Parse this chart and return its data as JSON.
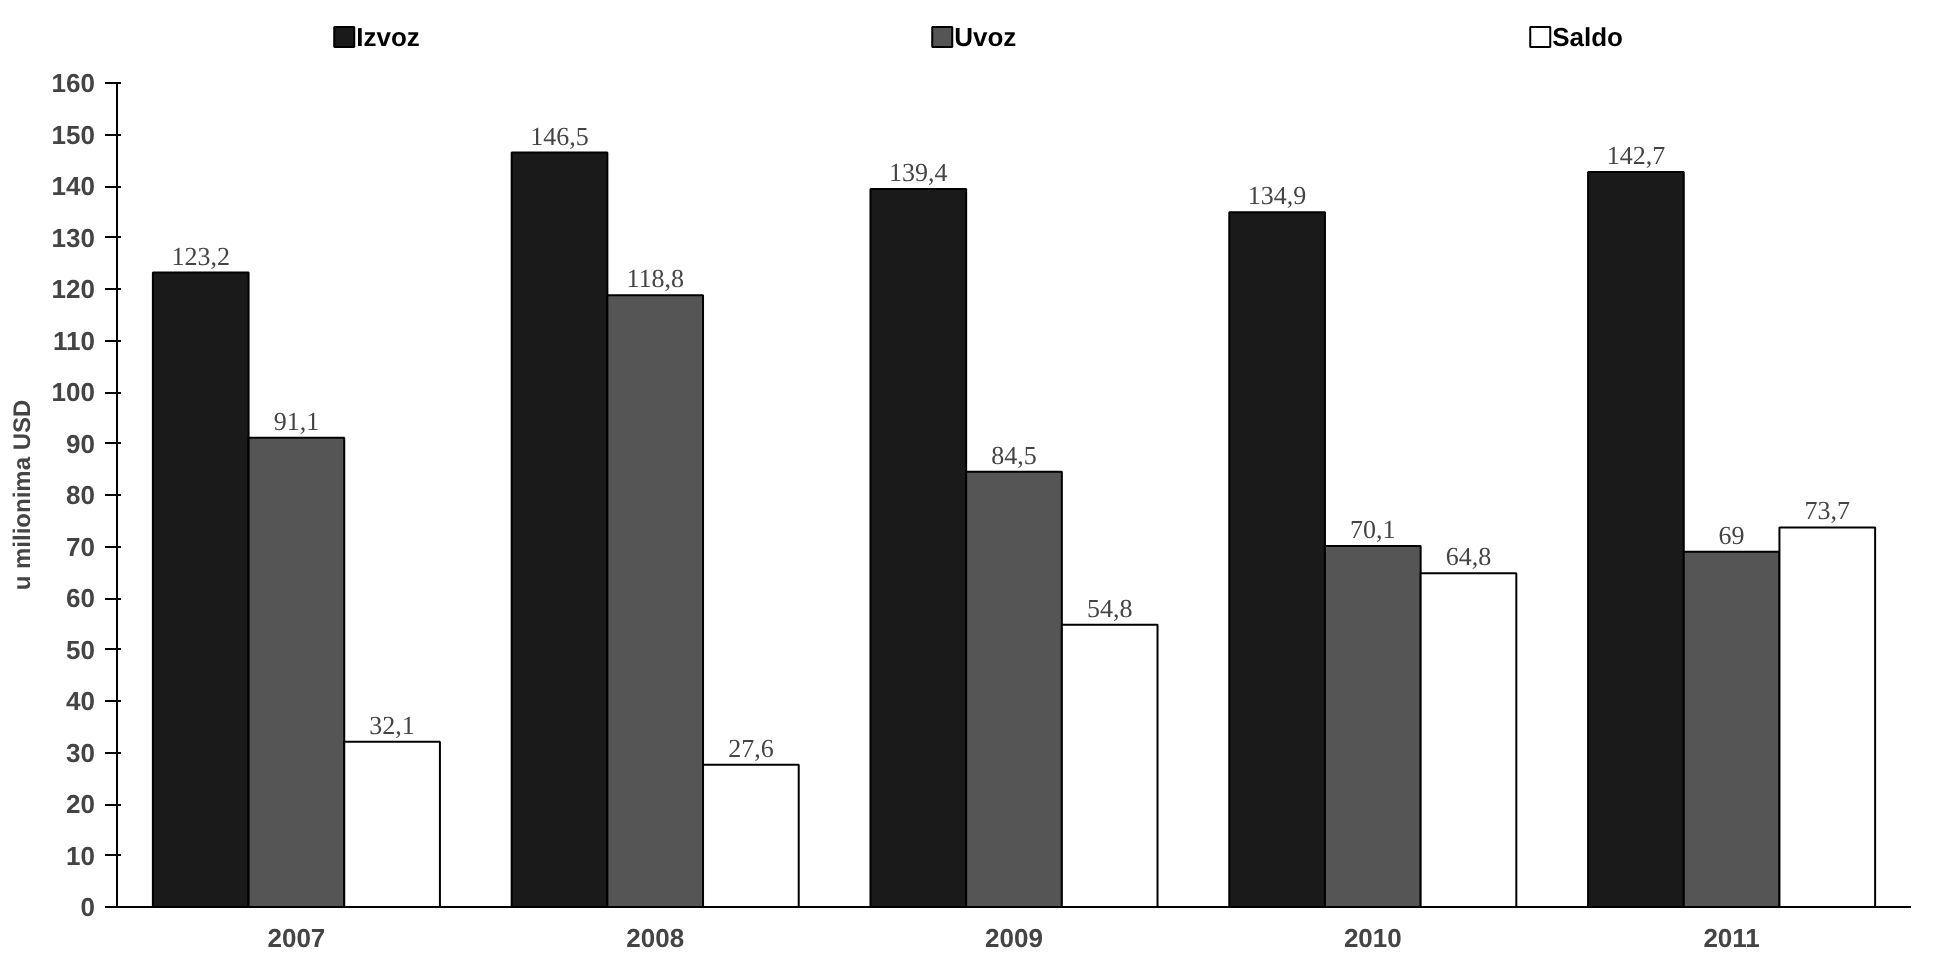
{
  "chart_data": {
    "type": "bar",
    "ylabel": "u milionima USD",
    "categories": [
      "2007",
      "2008",
      "2009",
      "2010",
      "2011"
    ],
    "series": [
      {
        "name": "Izvoz",
        "color": "#1a1a1a",
        "values": [
          123.2,
          146.5,
          139.4,
          134.9,
          142.7
        ],
        "value_labels": [
          "123,2",
          "146,5",
          "139,4",
          "134,9",
          "142,7"
        ]
      },
      {
        "name": "Uvoz",
        "color": "#555555",
        "values": [
          91.1,
          118.8,
          84.5,
          70.1,
          69
        ],
        "value_labels": [
          "91,1",
          "118,8",
          "84,5",
          "70,1",
          "69"
        ]
      },
      {
        "name": "Saldo",
        "color": "#ffffff",
        "values": [
          32.1,
          27.6,
          54.8,
          64.8,
          73.7
        ],
        "value_labels": [
          "32,1",
          "27,6",
          "54,8",
          "64,8",
          "73,7"
        ]
      }
    ],
    "ylim": [
      0,
      160
    ],
    "yticks": [
      0,
      10,
      20,
      30,
      40,
      50,
      60,
      70,
      80,
      90,
      100,
      110,
      120,
      130,
      140,
      150,
      160
    ],
    "grid": false,
    "legend": "top"
  }
}
